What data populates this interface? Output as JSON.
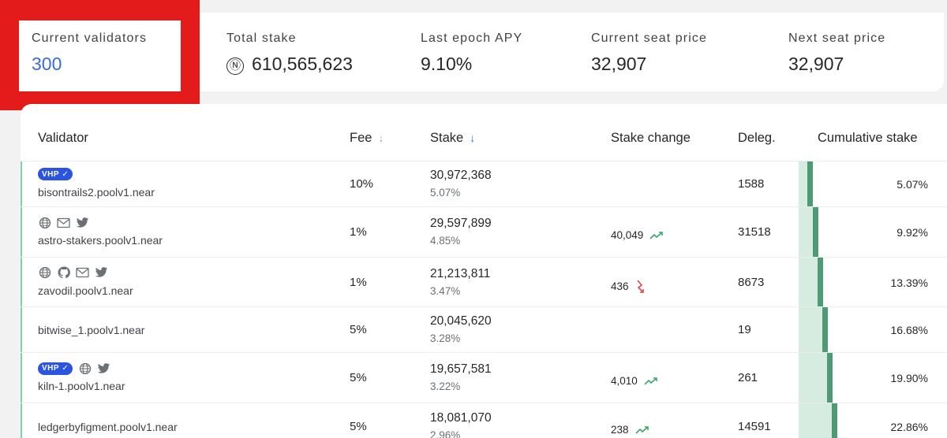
{
  "stats": [
    {
      "label": "Current validators",
      "value": "300"
    },
    {
      "label": "Total stake",
      "symbol": "Ⓝ",
      "value": "610,565,623"
    },
    {
      "label": "Last epoch APY",
      "value": "9.10%"
    },
    {
      "label": "Current seat price",
      "value": "32,907"
    },
    {
      "label": "Next seat price",
      "value": "32,907"
    }
  ],
  "table": {
    "headers": {
      "validator": "Validator",
      "fee": "Fee",
      "stake": "Stake",
      "stake_change": "Stake change",
      "deleg": "Deleg.",
      "cumulative": "Cumulative stake"
    },
    "rows": [
      {
        "name": "bisontrails2.poolv1.near",
        "badge": "VHP",
        "icons": [],
        "fee": "10%",
        "stake": "30,972,368",
        "stake_pct": "5.07%",
        "change": "",
        "trend": "",
        "deleg": "1588",
        "cumulative": "5.07%",
        "cum_fraction": 0.0507
      },
      {
        "name": "astro-stakers.poolv1.near",
        "badge": "",
        "icons": [
          "globe-icon",
          "mail-icon",
          "twitter-icon"
        ],
        "fee": "1%",
        "stake": "29,597,899",
        "stake_pct": "4.85%",
        "change": "40,049",
        "trend": "up",
        "deleg": "31518",
        "cumulative": "9.92%",
        "cum_fraction": 0.0992
      },
      {
        "name": "zavodil.poolv1.near",
        "badge": "",
        "icons": [
          "globe-icon",
          "github-icon",
          "mail-icon",
          "twitter-icon"
        ],
        "fee": "1%",
        "stake": "21,213,811",
        "stake_pct": "3.47%",
        "change": "436",
        "trend": "down",
        "deleg": "8673",
        "cumulative": "13.39%",
        "cum_fraction": 0.1339
      },
      {
        "name": "bitwise_1.poolv1.near",
        "badge": "",
        "icons": [],
        "fee": "5%",
        "stake": "20,045,620",
        "stake_pct": "3.28%",
        "change": "",
        "trend": "",
        "deleg": "19",
        "cumulative": "16.68%",
        "cum_fraction": 0.1668
      },
      {
        "name": "kiln-1.poolv1.near",
        "badge": "VHP",
        "icons": [
          "globe-icon",
          "twitter-icon"
        ],
        "fee": "5%",
        "stake": "19,657,581",
        "stake_pct": "3.22%",
        "change": "4,010",
        "trend": "up",
        "deleg": "261",
        "cumulative": "19.90%",
        "cum_fraction": 0.199
      },
      {
        "name": "ledgerbyfigment.poolv1.near",
        "badge": "",
        "icons": [],
        "fee": "5%",
        "stake": "18,081,070",
        "stake_pct": "2.96%",
        "change": "238",
        "trend": "up",
        "deleg": "14591",
        "cumulative": "22.86%",
        "cum_fraction": 0.2286
      }
    ]
  },
  "colors": {
    "accent_blue": "#3a6bd6",
    "highlight_red": "#e41b1b",
    "trend_up": "#3aa86a",
    "trend_down": "#e0474c",
    "cum_bar": "#4e9a75"
  }
}
